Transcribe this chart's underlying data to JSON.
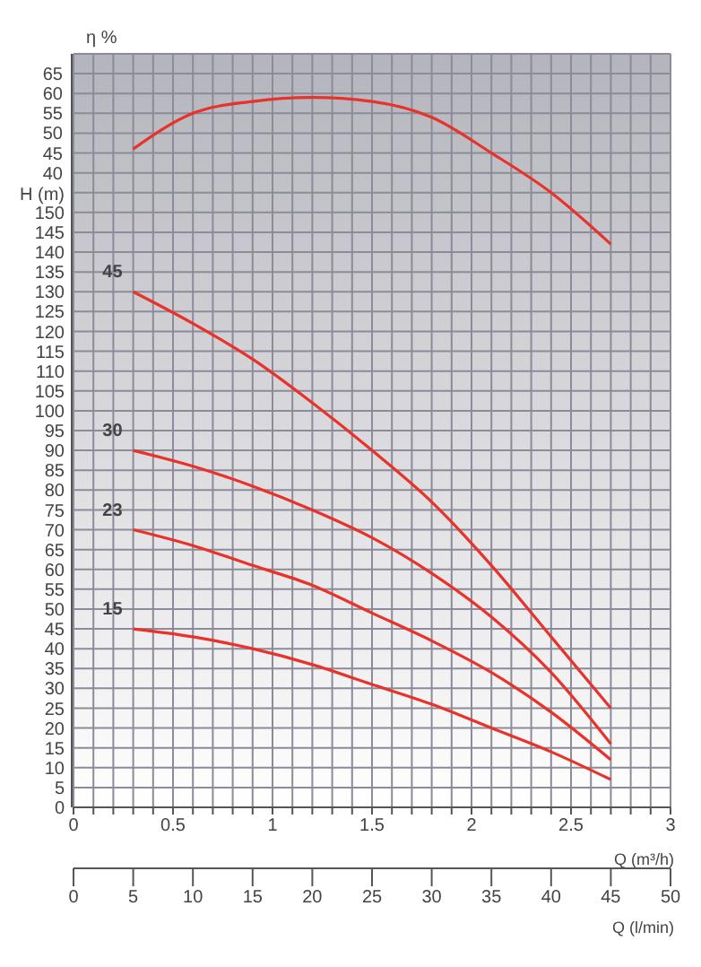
{
  "chart_data": {
    "type": "line",
    "xlabel": "Q (m³/h)",
    "x2label": "Q (l/min)",
    "ylabel": "H (m)",
    "y2label": "η %",
    "xlim": [
      0,
      3
    ],
    "xticks": [
      0,
      {
        "value": 0.1,
        "label": null
      },
      {
        "value": 0.2,
        "label": null
      },
      {
        "value": 0.3,
        "label": null
      },
      {
        "value": 0.4,
        "label": null
      },
      0.5,
      {
        "value": 0.6,
        "label": null
      },
      {
        "value": 0.7,
        "label": null
      },
      {
        "value": 0.8,
        "label": null
      },
      {
        "value": 0.9,
        "label": null
      },
      1,
      {
        "value": 1.1,
        "label": null
      },
      {
        "value": 1.2,
        "label": null
      },
      {
        "value": 1.3,
        "label": null
      },
      {
        "value": 1.4,
        "label": null
      },
      1.5,
      {
        "value": 1.6,
        "label": null
      },
      {
        "value": 1.7,
        "label": null
      },
      {
        "value": 1.8,
        "label": null
      },
      {
        "value": 1.9,
        "label": null
      },
      2,
      {
        "value": 2.1,
        "label": null
      },
      {
        "value": 2.2,
        "label": null
      },
      {
        "value": 2.3,
        "label": null
      },
      {
        "value": 2.4,
        "label": null
      },
      2.5,
      {
        "value": 2.6,
        "label": null
      },
      {
        "value": 2.7,
        "label": null
      },
      {
        "value": 2.8,
        "label": null
      },
      {
        "value": 2.9,
        "label": null
      },
      3
    ],
    "x2lim": [
      0,
      50
    ],
    "x2ticks": [
      0,
      5,
      10,
      15,
      20,
      25,
      30,
      35,
      40,
      45,
      50
    ],
    "ylim": [
      0,
      190
    ],
    "yticks": [
      0,
      5,
      10,
      15,
      20,
      25,
      30,
      35,
      40,
      45,
      50,
      55,
      60,
      65,
      70,
      75,
      80,
      85,
      90,
      95,
      100,
      105,
      110,
      115,
      120,
      125,
      130,
      135,
      140,
      145,
      150,
      {
        "value": 155,
        "label": null
      }
    ],
    "y2lim": [
      -120,
      70
    ],
    "y2ticks": [
      40,
      45,
      50,
      55,
      60,
      65,
      {
        "value": 70,
        "label": null
      }
    ],
    "grid": true,
    "marker": "none",
    "line_style": "solid",
    "series": [
      {
        "name": "45",
        "color": "#e8322a",
        "x": [
          0.3,
          0.6,
          0.9,
          1.2,
          1.5,
          1.8,
          2.1,
          2.4,
          2.7
        ],
        "values": [
          130,
          122,
          113,
          102,
          90,
          77,
          61,
          43,
          25
        ]
      },
      {
        "name": "30",
        "color": "#e8322a",
        "x": [
          0.3,
          0.6,
          0.9,
          1.2,
          1.5,
          1.8,
          2.1,
          2.4,
          2.7
        ],
        "values": [
          90,
          86,
          81,
          75,
          68,
          59,
          48,
          34,
          16
        ]
      },
      {
        "name": "23",
        "color": "#e8322a",
        "x": [
          0.3,
          0.6,
          0.9,
          1.2,
          1.5,
          1.8,
          2.1,
          2.4,
          2.7
        ],
        "values": [
          70,
          66,
          61,
          56,
          49,
          42,
          34,
          24,
          12
        ]
      },
      {
        "name": "15",
        "color": "#e8322a",
        "x": [
          0.3,
          0.6,
          0.9,
          1.2,
          1.5,
          1.8,
          2.1,
          2.4,
          2.7
        ],
        "values": [
          45,
          43,
          40,
          36,
          31,
          26,
          20,
          14,
          7
        ]
      },
      {
        "color": "#e8322a",
        "axis": "y2",
        "x": [
          0.3,
          0.6,
          0.9,
          1.2,
          1.5,
          1.8,
          2.1,
          2.4,
          2.7
        ],
        "values": [
          46,
          55,
          58,
          59,
          58,
          54,
          45,
          35,
          22
        ]
      }
    ]
  }
}
